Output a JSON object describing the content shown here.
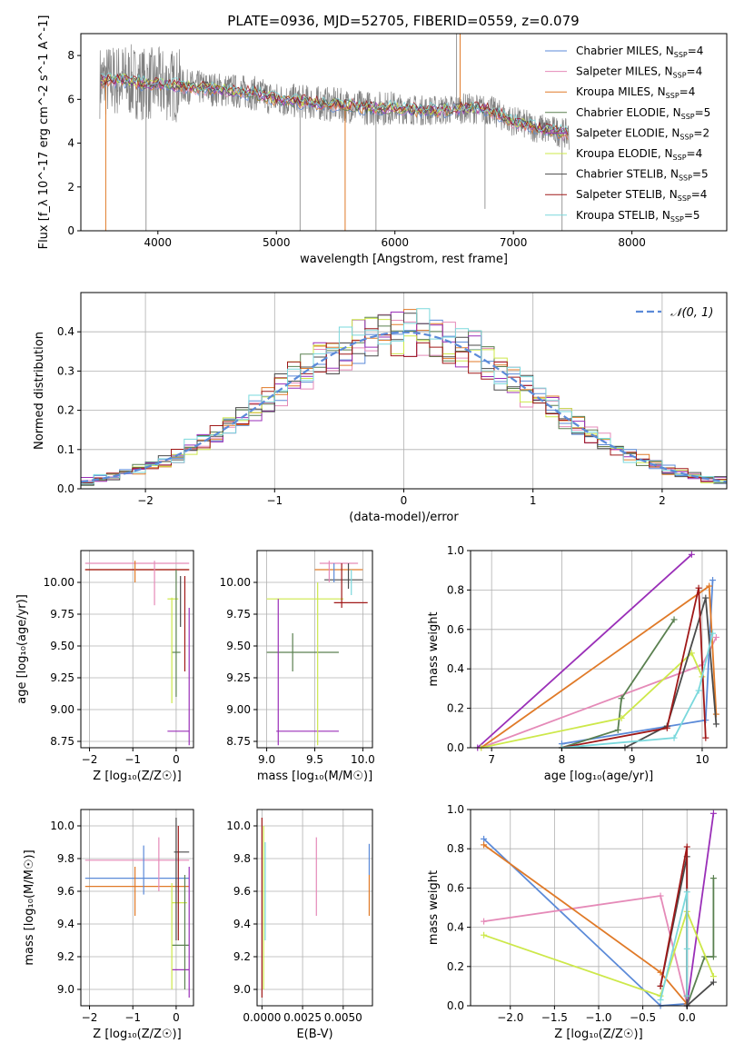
{
  "figure_title": "PLATE=0936, MJD=52705, FIBERID=0559, z=0.079",
  "colors": {
    "Chabrier MILES": "#5b8ad8",
    "Salpeter MILES": "#e58ab8",
    "Kroupa MILES": "#e07a28",
    "Chabrier ELODIE": "#5a8050",
    "Salpeter ELODIE": "#9a2fb8",
    "Kroupa ELODIE": "#cde84a",
    "Chabrier STELIB": "#4a4a4a",
    "Salpeter STELIB": "#a01818",
    "Kroupa STELIB": "#7ad8dc",
    "data_spectrum": "#808080",
    "normal_curve": "#5b8ad8"
  },
  "chart_data": [
    {
      "id": "spectrum",
      "type": "line",
      "title": "PLATE=0936, MJD=52705, FIBERID=0559, z=0.079",
      "xlabel": "wavelength [Angstrom, rest frame]",
      "ylabel": "Flux [f_λ 10^-17 erg cm^-2 s^-1 A^-1]",
      "xlim": [
        3350,
        8800
      ],
      "ylim": [
        0,
        9
      ],
      "xticks": [
        4000,
        5000,
        6000,
        7000,
        8000
      ],
      "yticks": [
        0,
        2,
        4,
        6,
        8
      ],
      "grid": false,
      "legend_position": "top-right",
      "legend": [
        {
          "label": "Chabrier MILES, N",
          "sub": "SSP",
          "suffix": "=4"
        },
        {
          "label": "Salpeter MILES, N",
          "sub": "SSP",
          "suffix": "=4"
        },
        {
          "label": "Kroupa MILES, N",
          "sub": "SSP",
          "suffix": "=4"
        },
        {
          "label": "Chabrier ELODIE, N",
          "sub": "SSP",
          "suffix": "=5"
        },
        {
          "label": "Salpeter ELODIE, N",
          "sub": "SSP",
          "suffix": "=2"
        },
        {
          "label": "Kroupa ELODIE, N",
          "sub": "SSP",
          "suffix": "=4"
        },
        {
          "label": "Chabrier STELIB, N",
          "sub": "SSP",
          "suffix": "=5"
        },
        {
          "label": "Salpeter STELIB, N",
          "sub": "SSP",
          "suffix": "=4"
        },
        {
          "label": "Kroupa STELIB, N",
          "sub": "SSP",
          "suffix": "=5"
        }
      ],
      "continuum": {
        "x": [
          3500,
          3700,
          3900,
          4000,
          4200,
          4400,
          4600,
          4800,
          5000,
          5200,
          5400,
          5600,
          5800,
          6000,
          6200,
          6400,
          6600,
          6800,
          7000,
          7200,
          7400,
          7500
        ],
        "y": [
          6.8,
          6.9,
          6.7,
          6.7,
          6.6,
          6.5,
          6.4,
          6.3,
          6.0,
          5.9,
          5.8,
          5.7,
          5.6,
          5.6,
          5.5,
          5.5,
          5.6,
          5.5,
          5.0,
          4.7,
          4.5,
          4.3
        ]
      }
    },
    {
      "id": "residuals",
      "type": "bar",
      "xlabel": "(data-model)/error",
      "ylabel": "Normed distribution",
      "xlim": [
        -2.5,
        2.5
      ],
      "ylim": [
        0,
        0.5
      ],
      "xticks": [
        -2,
        -1,
        0,
        1,
        2
      ],
      "yticks": [
        0.0,
        0.1,
        0.2,
        0.3,
        0.4
      ],
      "grid": true,
      "legend_position": "top-right",
      "normal_label": "𝒩(0, 1)",
      "bin_edges_start": -2.5,
      "bin_width": 0.1
    },
    {
      "id": "age_vs_Z",
      "type": "scatter",
      "xlabel": "Z [log₁₀(Z/Z☉)]",
      "ylabel": "age  [log₁₀(age/yr)]",
      "xlim": [
        -2.2,
        0.4
      ],
      "ylim": [
        8.7,
        10.25
      ],
      "xticks": [
        -2,
        -1,
        0
      ],
      "yticks": [
        8.75,
        9.0,
        9.25,
        9.5,
        9.75,
        10.0
      ],
      "grid": true
    },
    {
      "id": "age_vs_mass",
      "type": "scatter",
      "xlabel": "mass [log₁₀(M/M☉)]",
      "ylabel": "",
      "xlim": [
        8.9,
        10.1
      ],
      "ylim": [
        8.7,
        10.25
      ],
      "xticks": [
        9.0,
        9.5,
        10.0
      ],
      "yticks": [
        8.75,
        9.0,
        9.25,
        9.5,
        9.75,
        10.0
      ],
      "grid": true
    },
    {
      "id": "massweight_vs_age",
      "type": "line",
      "xlabel": "age  [log₁₀(age/yr)]",
      "ylabel": "mass weight",
      "xlim": [
        6.7,
        10.35
      ],
      "ylim": [
        0,
        1.0
      ],
      "xticks": [
        7,
        8,
        9,
        10
      ],
      "yticks": [
        0.0,
        0.2,
        0.4,
        0.6,
        0.8,
        1.0
      ],
      "grid": true,
      "series": [
        {
          "name": "Chabrier MILES",
          "x": [
            8.0,
            10.05,
            10.15
          ],
          "y": [
            0.02,
            0.14,
            0.85
          ]
        },
        {
          "name": "Salpeter MILES",
          "x": [
            6.85,
            10.0,
            10.2
          ],
          "y": [
            0.0,
            0.42,
            0.56
          ]
        },
        {
          "name": "Kroupa MILES",
          "x": [
            6.85,
            10.1,
            10.2
          ],
          "y": [
            0.0,
            0.82,
            0.17
          ]
        },
        {
          "name": "Chabrier ELODIE",
          "x": [
            8.0,
            8.8,
            8.85,
            9.6
          ],
          "y": [
            0.0,
            0.09,
            0.25,
            0.65
          ]
        },
        {
          "name": "Salpeter ELODIE",
          "x": [
            6.8,
            9.85
          ],
          "y": [
            0.0,
            0.98
          ]
        },
        {
          "name": "Kroupa ELODIE",
          "x": [
            6.85,
            8.85,
            9.85,
            10.0
          ],
          "y": [
            0.0,
            0.15,
            0.48,
            0.36
          ]
        },
        {
          "name": "Chabrier STELIB",
          "x": [
            8.0,
            8.9,
            9.5,
            10.05,
            10.2
          ],
          "y": [
            0.0,
            0.0,
            0.11,
            0.76,
            0.12
          ]
        },
        {
          "name": "Salpeter STELIB",
          "x": [
            8.0,
            9.5,
            9.95,
            10.05
          ],
          "y": [
            0.0,
            0.1,
            0.81,
            0.05
          ]
        },
        {
          "name": "Kroupa STELIB",
          "x": [
            8.0,
            9.6,
            9.95,
            10.15
          ],
          "y": [
            0.0,
            0.05,
            0.29,
            0.58
          ]
        }
      ]
    },
    {
      "id": "mass_vs_Z",
      "type": "scatter",
      "xlabel": "Z [log₁₀(Z/Z☉)]",
      "ylabel": "mass [log₁₀(M/M☉)]",
      "xlim": [
        -2.2,
        0.4
      ],
      "ylim": [
        8.9,
        10.1
      ],
      "xticks": [
        -2,
        -1,
        0
      ],
      "yticks": [
        9.0,
        9.2,
        9.4,
        9.6,
        9.8,
        10.0
      ],
      "grid": true
    },
    {
      "id": "mass_vs_ebv",
      "type": "scatter",
      "xlabel": "E(B-V)",
      "ylabel": "",
      "xlim": [
        -0.0003,
        0.0068
      ],
      "ylim": [
        8.9,
        10.1
      ],
      "xticks": [
        "0.0000",
        "0.0025",
        "0.0050"
      ],
      "xtick_values": [
        0.0,
        0.0025,
        0.005
      ],
      "yticks": [
        9.0,
        9.2,
        9.4,
        9.6,
        9.8,
        10.0
      ],
      "grid": true
    },
    {
      "id": "massweight_vs_Z",
      "type": "line",
      "xlabel": "Z [log₁₀(Z/Z☉)]",
      "ylabel": "mass weight",
      "xlim": [
        -2.45,
        0.45
      ],
      "ylim": [
        0,
        1.0
      ],
      "xticks": [
        -2.0,
        -1.5,
        -1.0,
        -0.5,
        0.0
      ],
      "yticks": [
        0.0,
        0.2,
        0.4,
        0.6,
        0.8,
        1.0
      ],
      "grid": true,
      "series": [
        {
          "name": "Chabrier MILES",
          "x": [
            -2.3,
            -0.3,
            0.0
          ],
          "y": [
            0.85,
            0.0,
            0.01
          ]
        },
        {
          "name": "Salpeter MILES",
          "x": [
            -2.3,
            -0.3,
            0.0
          ],
          "y": [
            0.43,
            0.56,
            0.01
          ]
        },
        {
          "name": "Kroupa MILES",
          "x": [
            -2.3,
            -0.3,
            0.0
          ],
          "y": [
            0.82,
            0.17,
            0.01
          ]
        },
        {
          "name": "Chabrier ELODIE",
          "x": [
            0.0,
            0.2,
            0.3,
            0.3
          ],
          "y": [
            0.0,
            0.25,
            0.25,
            0.65
          ]
        },
        {
          "name": "Salpeter ELODIE",
          "x": [
            0.0,
            0.3
          ],
          "y": [
            0.0,
            0.98
          ]
        },
        {
          "name": "Kroupa ELODIE",
          "x": [
            -2.3,
            -0.3,
            0.0,
            0.3
          ],
          "y": [
            0.36,
            0.05,
            0.48,
            0.15
          ]
        },
        {
          "name": "Chabrier STELIB",
          "x": [
            -0.3,
            0.0,
            0.0,
            0.3
          ],
          "y": [
            0.1,
            0.76,
            0.0,
            0.12
          ]
        },
        {
          "name": "Salpeter STELIB",
          "x": [
            -0.3,
            0.0,
            0.0
          ],
          "y": [
            0.1,
            0.81,
            0.05
          ]
        },
        {
          "name": "Kroupa STELIB",
          "x": [
            -0.3,
            0.0,
            0.0,
            0.0
          ],
          "y": [
            0.03,
            0.58,
            0.29,
            0.05
          ]
        }
      ]
    }
  ]
}
